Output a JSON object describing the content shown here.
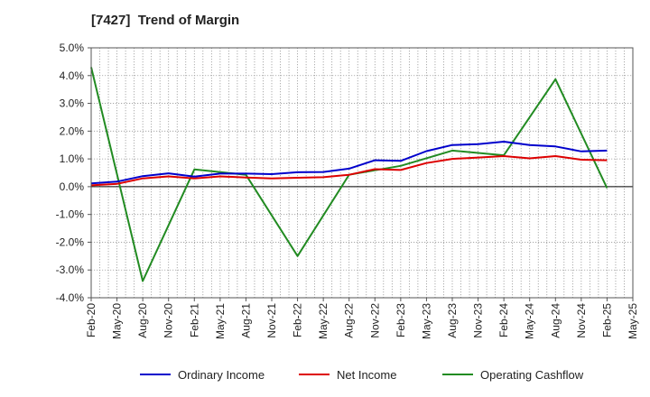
{
  "chart_data": {
    "type": "line",
    "title": "[7427]  Trend of Margin",
    "xlabel": "",
    "ylabel": "",
    "x_tick_labels": [
      "Feb-20",
      "May-20",
      "Aug-20",
      "Nov-20",
      "Feb-21",
      "May-21",
      "Aug-21",
      "Nov-21",
      "Feb-22",
      "May-22",
      "Aug-22",
      "Nov-22",
      "Feb-23",
      "May-23",
      "Aug-23",
      "Nov-23",
      "Feb-24",
      "May-24",
      "Aug-24",
      "Nov-24",
      "Feb-25",
      "May-25"
    ],
    "y_tick_labels": [
      "5.0%",
      "4.0%",
      "3.0%",
      "2.0%",
      "1.0%",
      "0.0%",
      "-1.0%",
      "-2.0%",
      "-3.0%",
      "-4.0%"
    ],
    "ylim": [
      -4.0,
      5.0
    ],
    "grid": true,
    "legend_position": "bottom",
    "categories": [
      "Feb-20",
      "May-20",
      "Aug-20",
      "Nov-20",
      "Feb-21",
      "May-21",
      "Aug-21",
      "Nov-21",
      "Feb-22",
      "May-22",
      "Aug-22",
      "Nov-22",
      "Feb-23",
      "May-23",
      "Aug-23",
      "Nov-23",
      "Feb-24",
      "May-24",
      "Aug-24",
      "Nov-24",
      "Feb-25"
    ],
    "series": [
      {
        "name": "Ordinary Income",
        "color": "#0000cc",
        "values": [
          0.12,
          0.18,
          0.38,
          0.48,
          0.36,
          0.47,
          0.47,
          0.45,
          0.52,
          0.53,
          0.65,
          0.95,
          0.93,
          1.28,
          1.5,
          1.53,
          1.62,
          1.5,
          1.45,
          1.27,
          1.3
        ]
      },
      {
        "name": "Net Income",
        "color": "#dd0000",
        "values": [
          0.05,
          0.1,
          0.3,
          0.37,
          0.3,
          0.37,
          0.33,
          0.3,
          0.32,
          0.34,
          0.43,
          0.63,
          0.6,
          0.85,
          1.0,
          1.05,
          1.1,
          1.02,
          1.1,
          0.97,
          0.95
        ]
      },
      {
        "name": "Operating Cashflow",
        "color": "#228b22",
        "values": [
          4.3,
          null,
          -3.4,
          null,
          0.62,
          null,
          0.43,
          null,
          -2.5,
          null,
          0.43,
          null,
          0.75,
          null,
          1.3,
          null,
          1.13,
          null,
          3.87,
          null,
          -0.05
        ]
      }
    ]
  }
}
